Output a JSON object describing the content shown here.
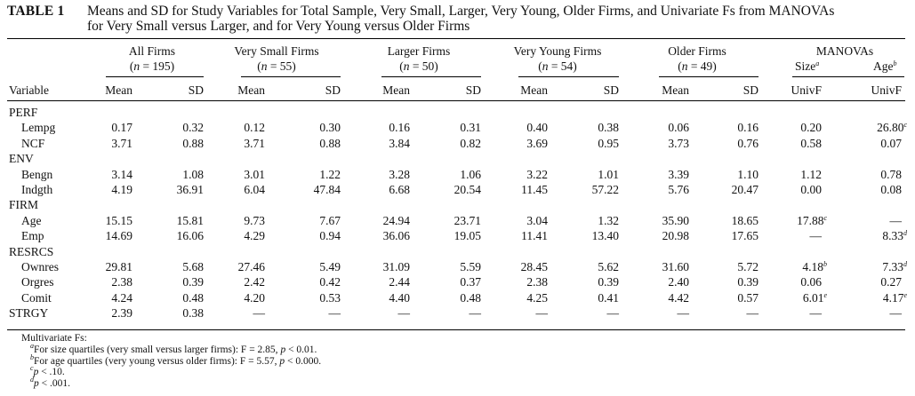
{
  "caption": {
    "label": "TABLE 1",
    "line1": "Means and SD for Study Variables for Total Sample, Very Small, Larger, Very Young, Older Firms, and Univariate Fs from MANOVAs",
    "line2": "for Very Small versus Larger, and for Very Young versus Older Firms"
  },
  "groups": [
    {
      "name": "All Firms",
      "n": "195"
    },
    {
      "name": "Very Small Firms",
      "n": "55"
    },
    {
      "name": "Larger Firms",
      "n": "50"
    },
    {
      "name": "Very Young Firms",
      "n": "54"
    },
    {
      "name": "Older Firms",
      "n": "49"
    }
  ],
  "manova": {
    "title": "MANOVAs",
    "size": "Size",
    "size_sup": "a",
    "age": "Age",
    "age_sup": "b",
    "stat": "UnivF"
  },
  "col_labels": {
    "variable": "Variable",
    "mean": "Mean",
    "sd": "SD",
    "n_prefix": "(n = ",
    "n_suffix": ")"
  },
  "sections": [
    {
      "name": "PERF",
      "rows": [
        {
          "var": "Lempg",
          "vals": [
            "0.17",
            "0.32",
            "0.12",
            "0.30",
            "0.16",
            "0.31",
            "0.40",
            "0.38",
            "0.06",
            "0.16"
          ],
          "size": "0.20",
          "size_sup": "",
          "age": "26.80",
          "age_sup": "c"
        },
        {
          "var": "NCF",
          "vals": [
            "3.71",
            "0.88",
            "3.71",
            "0.88",
            "3.84",
            "0.82",
            "3.69",
            "0.95",
            "3.73",
            "0.76"
          ],
          "size": "0.58",
          "size_sup": "",
          "age": "0.07",
          "age_sup": ""
        }
      ]
    },
    {
      "name": "ENV",
      "rows": [
        {
          "var": "Bengn",
          "vals": [
            "3.14",
            "1.08",
            "3.01",
            "1.22",
            "3.28",
            "1.06",
            "3.22",
            "1.01",
            "3.39",
            "1.10"
          ],
          "size": "1.12",
          "size_sup": "",
          "age": "0.78",
          "age_sup": ""
        },
        {
          "var": "Indgth",
          "vals": [
            "4.19",
            "36.91",
            "6.04",
            "47.84",
            "6.68",
            "20.54",
            "11.45",
            "57.22",
            "5.76",
            "20.47"
          ],
          "size": "0.00",
          "size_sup": "",
          "age": "0.08",
          "age_sup": ""
        }
      ]
    },
    {
      "name": "FIRM",
      "rows": [
        {
          "var": "Age",
          "vals": [
            "15.15",
            "15.81",
            "9.73",
            "7.67",
            "24.94",
            "23.71",
            "3.04",
            "1.32",
            "35.90",
            "18.65"
          ],
          "size": "17.88",
          "size_sup": "c",
          "age": "—",
          "age_sup": ""
        },
        {
          "var": "Emp",
          "vals": [
            "14.69",
            "16.06",
            "4.29",
            "0.94",
            "36.06",
            "19.05",
            "11.41",
            "13.40",
            "20.98",
            "17.65"
          ],
          "size": "—",
          "size_sup": "",
          "age": "8.33",
          "age_sup": "d"
        }
      ]
    },
    {
      "name": "RESRCS",
      "rows": [
        {
          "var": "Ownres",
          "vals": [
            "29.81",
            "5.68",
            "27.46",
            "5.49",
            "31.09",
            "5.59",
            "28.45",
            "5.62",
            "31.60",
            "5.72"
          ],
          "size": "4.18",
          "size_sup": "b",
          "age": "7.33",
          "age_sup": "d"
        },
        {
          "var": "Orgres",
          "vals": [
            "2.38",
            "0.39",
            "2.42",
            "0.42",
            "2.44",
            "0.37",
            "2.38",
            "0.39",
            "2.40",
            "0.39"
          ],
          "size": "0.06",
          "size_sup": "",
          "age": "0.27",
          "age_sup": ""
        },
        {
          "var": "Comit",
          "vals": [
            "4.24",
            "0.48",
            "4.20",
            "0.53",
            "4.40",
            "0.48",
            "4.25",
            "0.41",
            "4.42",
            "0.57"
          ],
          "size": "6.01",
          "size_sup": "e",
          "age": "4.17",
          "age_sup": "e"
        }
      ]
    },
    {
      "name": "STRGY",
      "rows": [],
      "inline_vals": [
        "2.39",
        "0.38",
        "—",
        "—",
        "—",
        "—",
        "—",
        "—",
        "—",
        "—"
      ],
      "size": "—",
      "age": "—"
    }
  ],
  "notes": {
    "title": "Multivariate Fs:",
    "items": [
      {
        "sup": "a",
        "pre": "For size quartiles (very small versus larger firms): F = 2.85, ",
        "p": "p",
        "post": " < 0.01."
      },
      {
        "sup": "b",
        "pre": "For age quartiles (very young versus older firms): F = 5.57, ",
        "p": "p",
        "post": " < 0.000."
      },
      {
        "sup": "c",
        "pre": "",
        "p": "p",
        "post": " < .10."
      },
      {
        "sup": "d",
        "pre": "",
        "p": "p",
        "post": " < .001."
      }
    ]
  }
}
